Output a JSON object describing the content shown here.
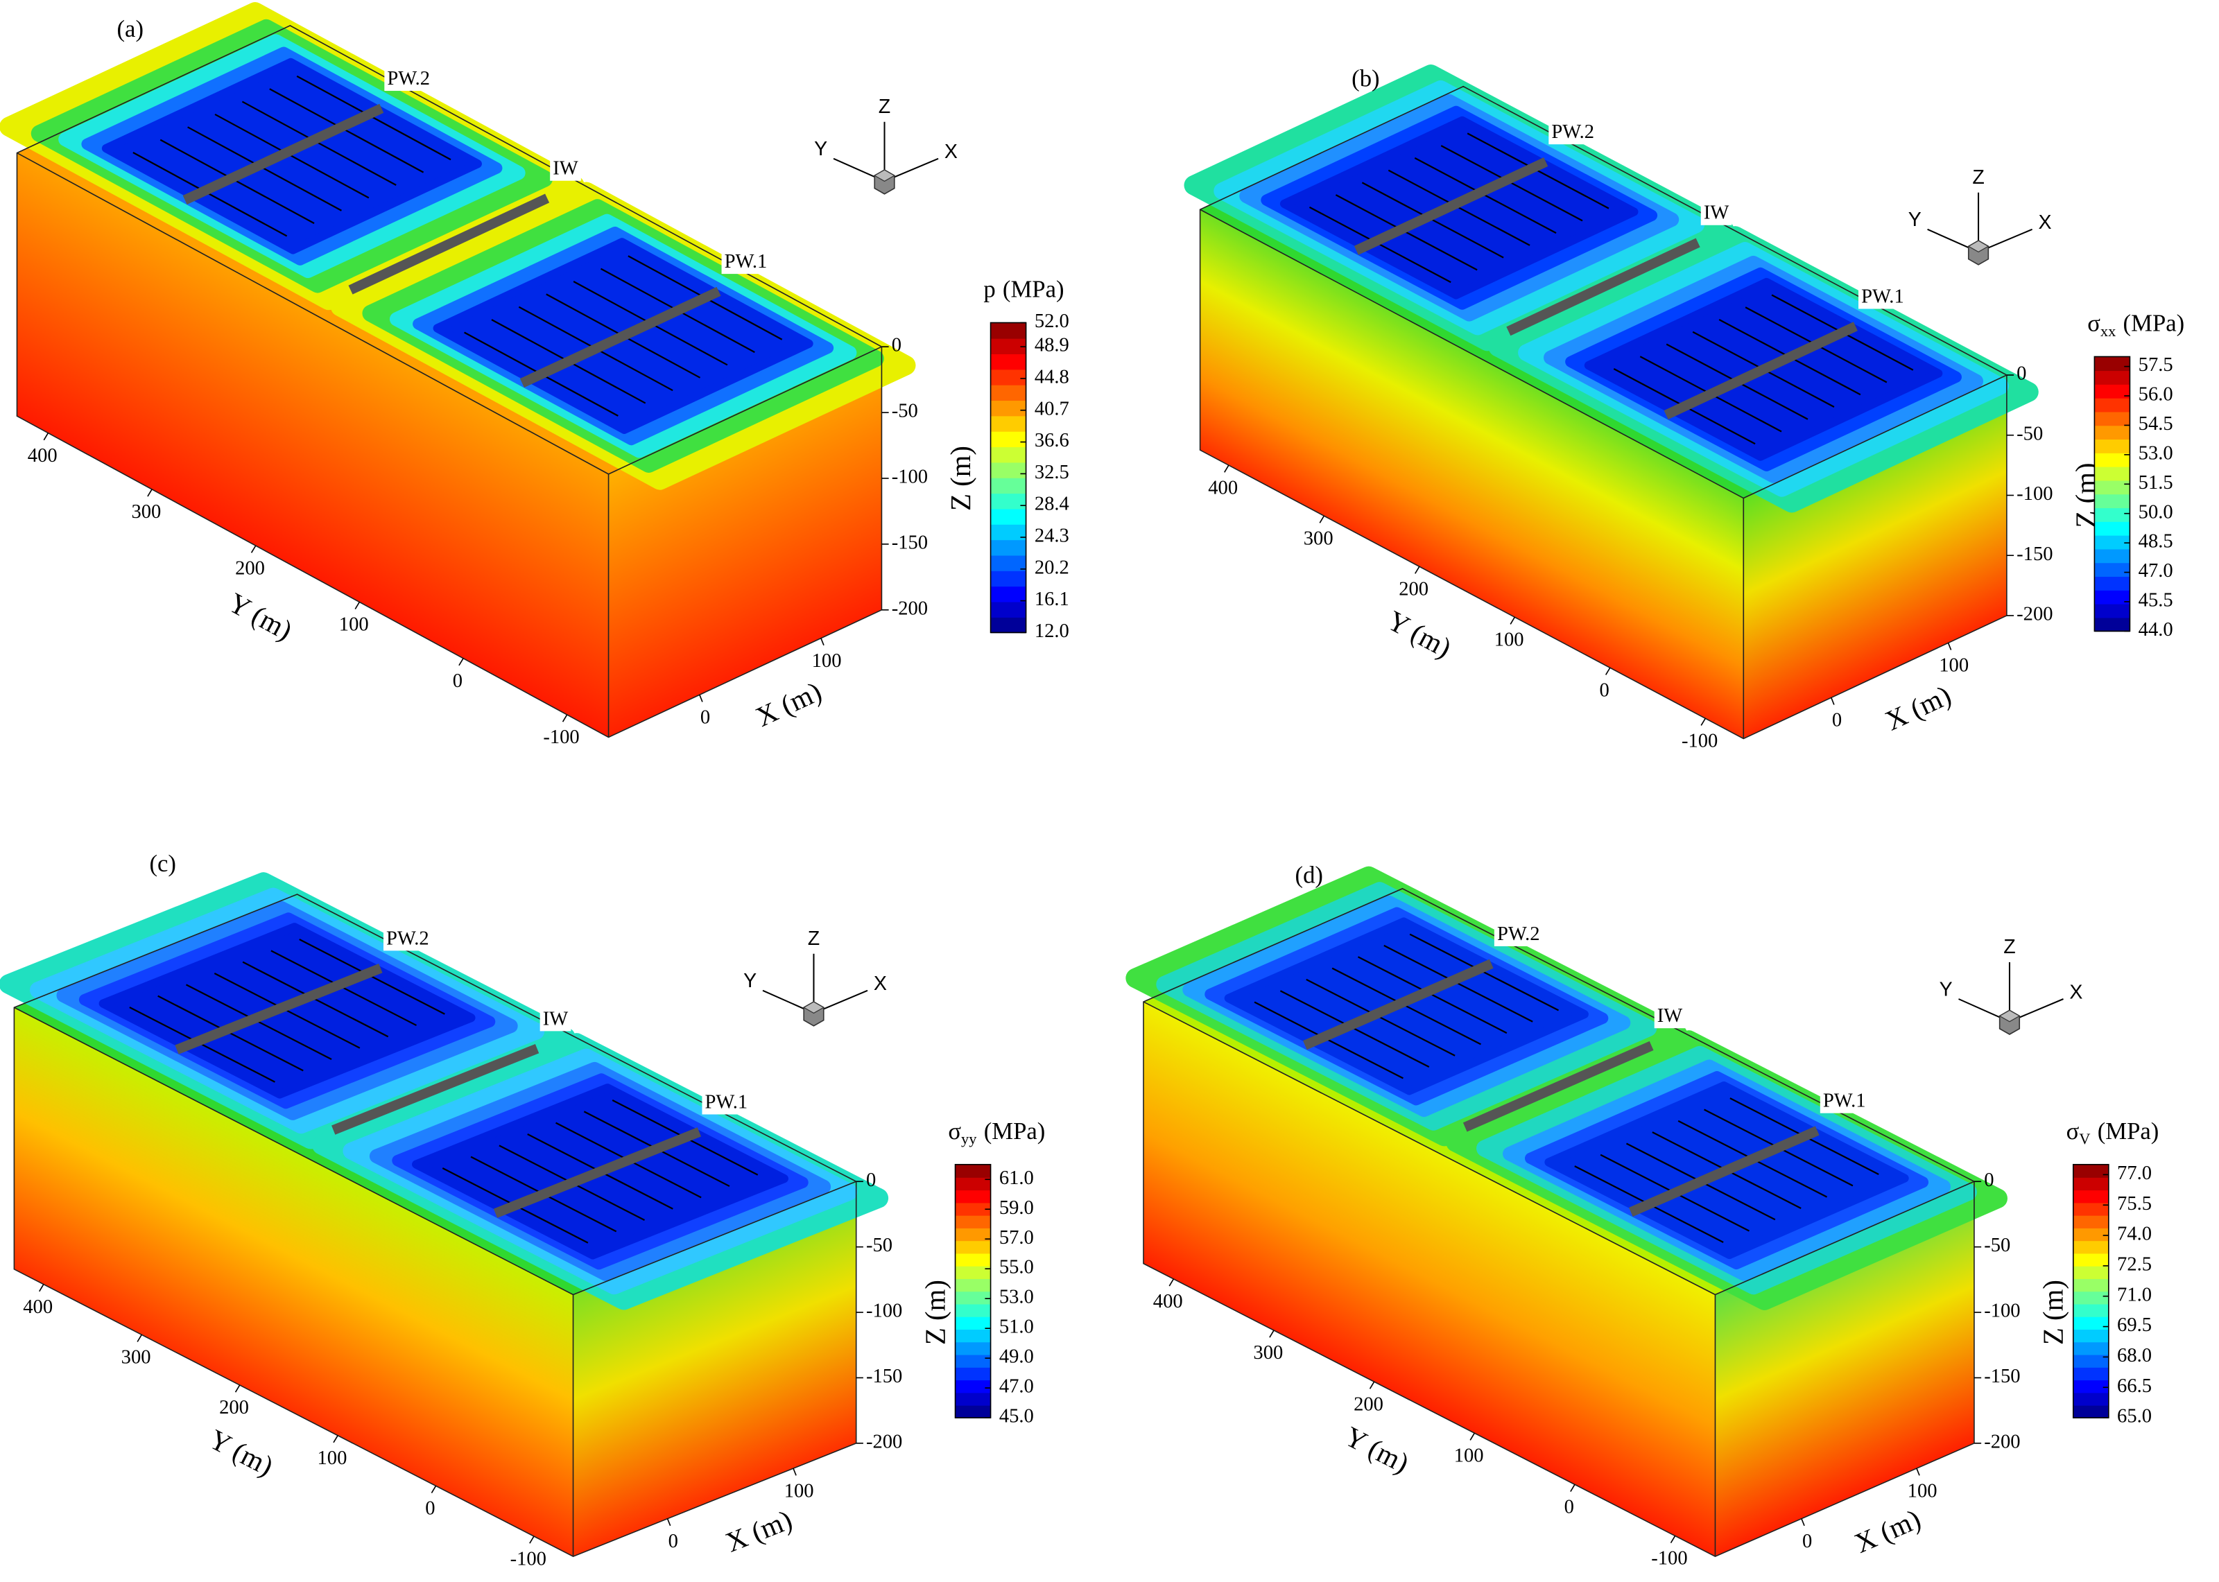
{
  "chart_data": [
    {
      "type": "contour3d",
      "title": "(a)",
      "clabel": "p",
      "cunit": "(MPa)",
      "clim": [
        12,
        52
      ],
      "cticks": [
        {
          "value": 52,
          "label": "52.0"
        },
        {
          "value": 48.9,
          "label": "48.9"
        },
        {
          "value": 44.8,
          "label": "44.8"
        },
        {
          "value": 40.7,
          "label": "40.7"
        },
        {
          "value": 36.6,
          "label": "36.6"
        },
        {
          "value": 32.5,
          "label": "32.5"
        },
        {
          "value": 28.4,
          "label": "28.4"
        },
        {
          "value": 24.3,
          "label": "24.3"
        },
        {
          "value": 20.2,
          "label": "20.2"
        },
        {
          "value": 16.1,
          "label": "16.1"
        },
        {
          "value": 12,
          "label": "12.0"
        }
      ],
      "xlabel": "X (m)",
      "ylabel": "Y (m)",
      "zlabel": "Z (m)",
      "xlim": [
        -75,
        150
      ],
      "xticks": [
        0,
        100
      ],
      "ylim": [
        -140,
        430
      ],
      "yticks": [
        400,
        300,
        200,
        100,
        0,
        -100
      ],
      "zlim": [
        -200,
        0
      ],
      "zticks": [
        0,
        -50,
        -100,
        -150,
        -200
      ],
      "wells": [
        "PW.2",
        "IW",
        "PW.1"
      ],
      "triad": [
        "Z",
        "Y",
        "X"
      ]
    },
    {
      "type": "contour3d",
      "title": "(b)",
      "clabel": "σ",
      "clabel_sub": "xx",
      "cunit": "(MPa)",
      "clim": [
        44,
        58
      ],
      "cticks": [
        {
          "value": 57.5,
          "label": "57.5"
        },
        {
          "value": 56,
          "label": "56.0"
        },
        {
          "value": 54.5,
          "label": "54.5"
        },
        {
          "value": 53,
          "label": "53.0"
        },
        {
          "value": 51.5,
          "label": "51.5"
        },
        {
          "value": 50,
          "label": "50.0"
        },
        {
          "value": 48.5,
          "label": "48.5"
        },
        {
          "value": 47,
          "label": "47.0"
        },
        {
          "value": 45.5,
          "label": "45.5"
        },
        {
          "value": 44,
          "label": "44.0"
        }
      ],
      "xlabel": "X (m)",
      "ylabel": "Y (m)",
      "zlabel": "Z (m)",
      "xlim": [
        -75,
        150
      ],
      "xticks": [
        0,
        100
      ],
      "ylim": [
        -140,
        430
      ],
      "yticks": [
        400,
        300,
        200,
        100,
        0,
        -100
      ],
      "zlim": [
        -200,
        0
      ],
      "zticks": [
        0,
        -50,
        -100,
        -150,
        -200
      ],
      "wells": [
        "PW.2",
        "IW",
        "PW.1"
      ],
      "triad": [
        "Z",
        "Y",
        "X"
      ]
    },
    {
      "type": "contour3d",
      "title": "(c)",
      "clabel": "σ",
      "clabel_sub": "yy",
      "cunit": "(MPa)",
      "clim": [
        45,
        62
      ],
      "cticks": [
        {
          "value": 61,
          "label": "61.0"
        },
        {
          "value": 59,
          "label": "59.0"
        },
        {
          "value": 57,
          "label": "57.0"
        },
        {
          "value": 55,
          "label": "55.0"
        },
        {
          "value": 53,
          "label": "53.0"
        },
        {
          "value": 51,
          "label": "51.0"
        },
        {
          "value": 49,
          "label": "49.0"
        },
        {
          "value": 47,
          "label": "47.0"
        },
        {
          "value": 45,
          "label": "45.0"
        }
      ],
      "xlabel": "X (m)",
      "ylabel": "Y (m)",
      "zlabel": "Z (m)",
      "xlim": [
        -75,
        150
      ],
      "xticks": [
        0,
        100
      ],
      "ylim": [
        -140,
        430
      ],
      "yticks": [
        400,
        300,
        200,
        100,
        0,
        -100
      ],
      "zlim": [
        -200,
        0
      ],
      "zticks": [
        0,
        -50,
        -100,
        -150,
        -200
      ],
      "wells": [
        "PW.2",
        "IW",
        "PW.1"
      ],
      "triad": [
        "Z",
        "Y",
        "X"
      ]
    },
    {
      "type": "contour3d",
      "title": "(d)",
      "clabel": "σ",
      "clabel_sub": "V",
      "cunit": "(MPa)",
      "clim": [
        65,
        77.5
      ],
      "cticks": [
        {
          "value": 77,
          "label": "77.0"
        },
        {
          "value": 75.5,
          "label": "75.5"
        },
        {
          "value": 74,
          "label": "74.0"
        },
        {
          "value": 72.5,
          "label": "72.5"
        },
        {
          "value": 71,
          "label": "71.0"
        },
        {
          "value": 69.5,
          "label": "69.5"
        },
        {
          "value": 68,
          "label": "68.0"
        },
        {
          "value": 66.5,
          "label": "66.5"
        },
        {
          "value": 65,
          "label": "65.0"
        }
      ],
      "xlabel": "X (m)",
      "ylabel": "Y (m)",
      "zlabel": "Z (m)",
      "xlim": [
        -75,
        150
      ],
      "xticks": [
        0,
        100
      ],
      "ylim": [
        -140,
        430
      ],
      "yticks": [
        400,
        300,
        200,
        100,
        0,
        -100
      ],
      "zlim": [
        -200,
        0
      ],
      "zticks": [
        0,
        -50,
        -100,
        -150,
        -200
      ],
      "wells": [
        "PW.2",
        "IW",
        "PW.1"
      ],
      "triad": [
        "Z",
        "Y",
        "X"
      ]
    }
  ]
}
